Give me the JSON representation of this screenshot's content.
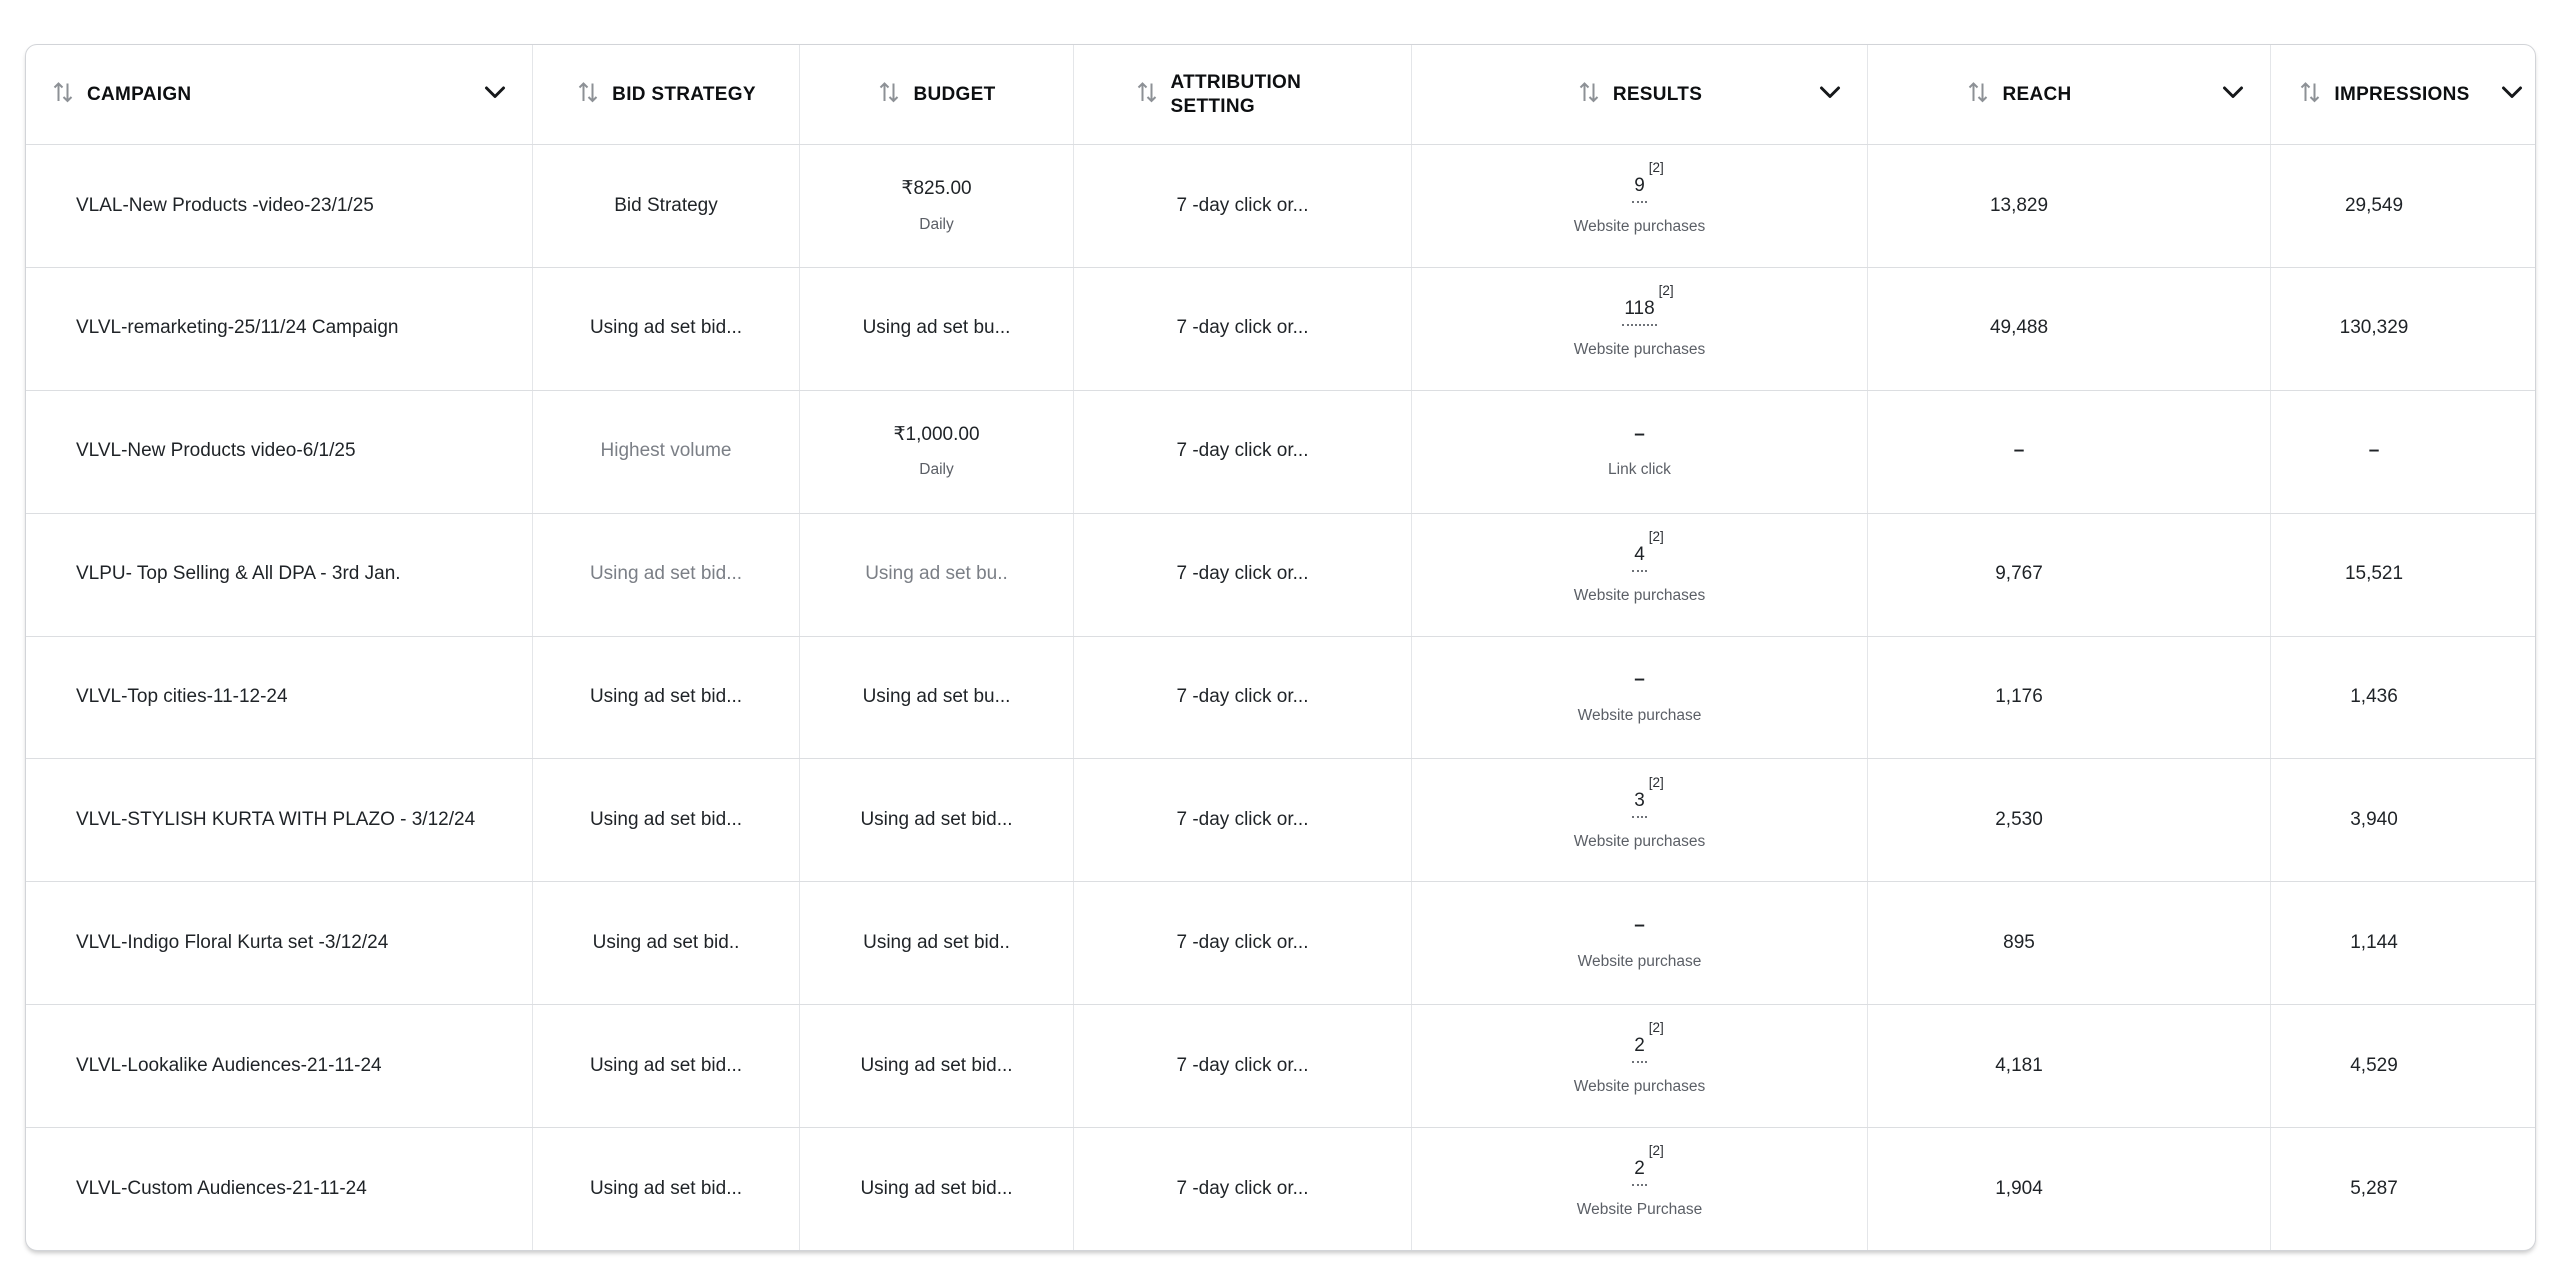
{
  "colors": {
    "header_text": "#0d0f11",
    "cell_text": "#1f2327",
    "muted_text": "#7b7f86",
    "sublabel_text": "#5b5f66",
    "row_border": "#dcdee1"
  },
  "table": {
    "columns": [
      {
        "key": "campaign",
        "label": "CAMPAIGN",
        "sortable": true,
        "menu": true
      },
      {
        "key": "bid_strategy",
        "label": "BID STRATEGY",
        "sortable": true,
        "menu": false
      },
      {
        "key": "budget",
        "label": "BUDGET",
        "sortable": true,
        "menu": false
      },
      {
        "key": "attribution",
        "label": "ATTRIBUTION SETTING",
        "sortable": true,
        "menu": false
      },
      {
        "key": "results",
        "label": "RESULTS",
        "sortable": true,
        "menu": true
      },
      {
        "key": "reach",
        "label": "REACH",
        "sortable": true,
        "menu": true
      },
      {
        "key": "impressions",
        "label": "IMPRESSIONS",
        "sortable": true,
        "menu": true
      }
    ],
    "rows": [
      {
        "campaign": "VLAL-New Products -video-23/1/25",
        "bid_strategy": {
          "value": "Bid Strategy",
          "muted": false
        },
        "budget": {
          "value": "₹825.00",
          "sublabel": "Daily",
          "muted": false
        },
        "attribution": "7 -day click or...",
        "results": {
          "value": "9",
          "superscript": "[2]",
          "underline": true,
          "sublabel": "Website purchases"
        },
        "reach": "13,829",
        "impressions": "29,549"
      },
      {
        "campaign": "VLVL-remarketing-25/11/24 Campaign",
        "bid_strategy": {
          "value": "Using ad set bid...",
          "muted": false
        },
        "budget": {
          "value": "Using ad set bu...",
          "muted": false
        },
        "attribution": "7 -day click or...",
        "results": {
          "value": "118",
          "superscript": "[2]",
          "underline": true,
          "sublabel": "Website purchases"
        },
        "reach": "49,488",
        "impressions": "130,329"
      },
      {
        "campaign": "VLVL-New Products video-6/1/25",
        "bid_strategy": {
          "value": "Highest volume",
          "muted": true
        },
        "budget": {
          "value": "₹1,000.00",
          "sublabel": "Daily",
          "muted": false
        },
        "attribution": "7 -day click or...",
        "results": {
          "value": "–",
          "dash": true,
          "underline": false,
          "sublabel": "Link click"
        },
        "reach": "–",
        "impressions": "–"
      },
      {
        "campaign": "VLPU- Top Selling & All DPA - 3rd Jan.",
        "bid_strategy": {
          "value": "Using ad set bid...",
          "muted": true
        },
        "budget": {
          "value": "Using ad set bu..",
          "muted": true
        },
        "attribution": "7 -day click or...",
        "results": {
          "value": "4",
          "superscript": "[2]",
          "underline": true,
          "sublabel": "Website purchases"
        },
        "reach": "9,767",
        "impressions": "15,521"
      },
      {
        "campaign": "VLVL-Top cities-11-12-24",
        "bid_strategy": {
          "value": "Using ad set bid...",
          "muted": false
        },
        "budget": {
          "value": "Using ad set bu...",
          "muted": false
        },
        "attribution": "7 -day click or...",
        "results": {
          "value": "–",
          "dash": true,
          "underline": false,
          "sublabel": "Website purchase"
        },
        "reach": "1,176",
        "impressions": "1,436"
      },
      {
        "campaign": "VLVL-STYLISH KURTA WITH PLAZO - 3/12/24",
        "bid_strategy": {
          "value": "Using ad set bid...",
          "muted": false
        },
        "budget": {
          "value": "Using ad set bid...",
          "muted": false
        },
        "attribution": "7 -day click or...",
        "results": {
          "value": "3",
          "superscript": "[2]",
          "underline": true,
          "sublabel": "Website purchases"
        },
        "reach": "2,530",
        "impressions": "3,940"
      },
      {
        "campaign": "VLVL-Indigo Floral Kurta set -3/12/24",
        "bid_strategy": {
          "value": "Using ad set bid..",
          "muted": false
        },
        "budget": {
          "value": "Using ad set bid..",
          "muted": false
        },
        "attribution": "7 -day click or...",
        "results": {
          "value": "–",
          "dash": true,
          "underline": false,
          "sublabel": "Website purchase"
        },
        "reach": "895",
        "impressions": "1,144"
      },
      {
        "campaign": "VLVL-Lookalike Audiences-21-11-24",
        "bid_strategy": {
          "value": "Using ad set bid...",
          "muted": false
        },
        "budget": {
          "value": "Using ad set bid...",
          "muted": false
        },
        "attribution": "7 -day click or...",
        "results": {
          "value": "2",
          "superscript": "[2]",
          "underline": true,
          "sublabel": "Website purchases"
        },
        "reach": "4,181",
        "impressions": "4,529"
      },
      {
        "campaign": "VLVL-Custom Audiences-21-11-24",
        "bid_strategy": {
          "value": "Using ad set bid...",
          "muted": false
        },
        "budget": {
          "value": "Using ad set bid...",
          "muted": false
        },
        "attribution": "7 -day click or...",
        "results": {
          "value": "2",
          "superscript": "[2]",
          "underline": true,
          "sublabel": "Website Purchase"
        },
        "reach": "1,904",
        "impressions": "5,287"
      }
    ]
  }
}
